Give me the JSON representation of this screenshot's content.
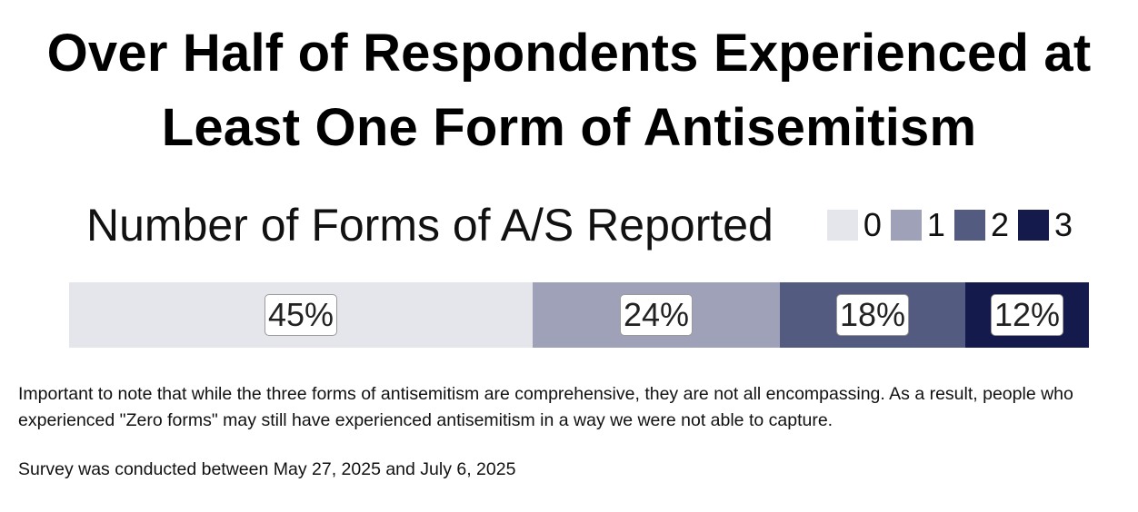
{
  "chart_data": {
    "type": "bar",
    "orientation": "horizontal-stacked",
    "title": "Over Half of Respondents Experienced at Least One Form of Antisemitism",
    "legend_title": "Number of Forms of A/S Reported",
    "legend_placement": "top-right",
    "categories": [
      ""
    ],
    "series": [
      {
        "name": "0",
        "values": [
          45
        ],
        "label": "45%",
        "color": "#e5e6ec"
      },
      {
        "name": "1",
        "values": [
          24
        ],
        "label": "24%",
        "color": "#9ea1b7"
      },
      {
        "name": "2",
        "values": [
          18
        ],
        "label": "18%",
        "color": "#545b80"
      },
      {
        "name": "3",
        "values": [
          12
        ],
        "label": "12%",
        "color": "#141a4c"
      }
    ],
    "xlim": [
      0,
      99
    ],
    "grid": false
  },
  "notes": {
    "caveat": "Important to note that while the three forms of antisemitism are comprehensive, they are not all encompassing. As a result, people who experienced \"Zero forms\" may still have experienced antisemitism in a way we were not able to capture.",
    "survey": "Survey was conducted between May 27, 2025 and July 6, 2025"
  }
}
